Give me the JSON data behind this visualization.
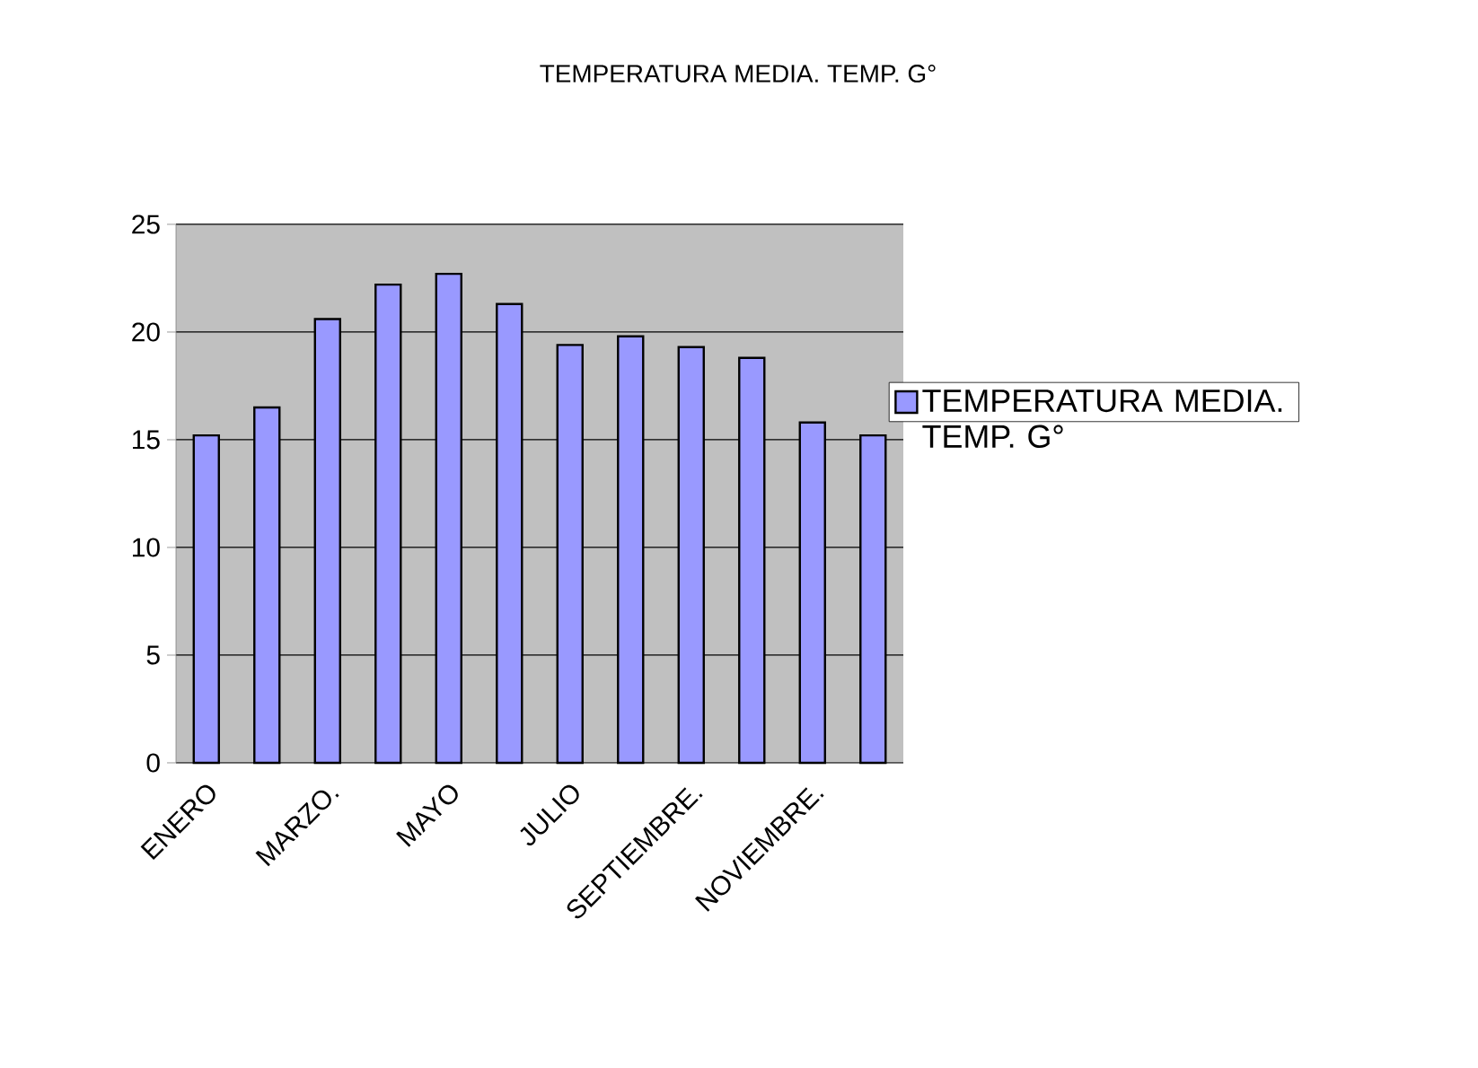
{
  "chart_data": {
    "type": "bar",
    "title": "TEMPERATURA MEDIA. TEMP. G°",
    "categories": [
      "ENERO",
      null,
      "MARZO.",
      null,
      "MAYO",
      null,
      "JULIO",
      null,
      "SEPTIEMBRE.",
      null,
      "NOVIEMBRE.",
      null
    ],
    "series": [
      {
        "name": "TEMPERATURA MEDIA. TEMP. G°",
        "color": "#9999ff",
        "values": [
          15.2,
          16.5,
          20.6,
          22.2,
          22.7,
          21.3,
          19.4,
          19.8,
          19.3,
          18.8,
          15.8,
          15.2
        ]
      }
    ],
    "ylim": [
      0,
      25
    ],
    "yticks": [
      0,
      5,
      10,
      15,
      20,
      25
    ],
    "grid": "y",
    "legend": "right"
  }
}
